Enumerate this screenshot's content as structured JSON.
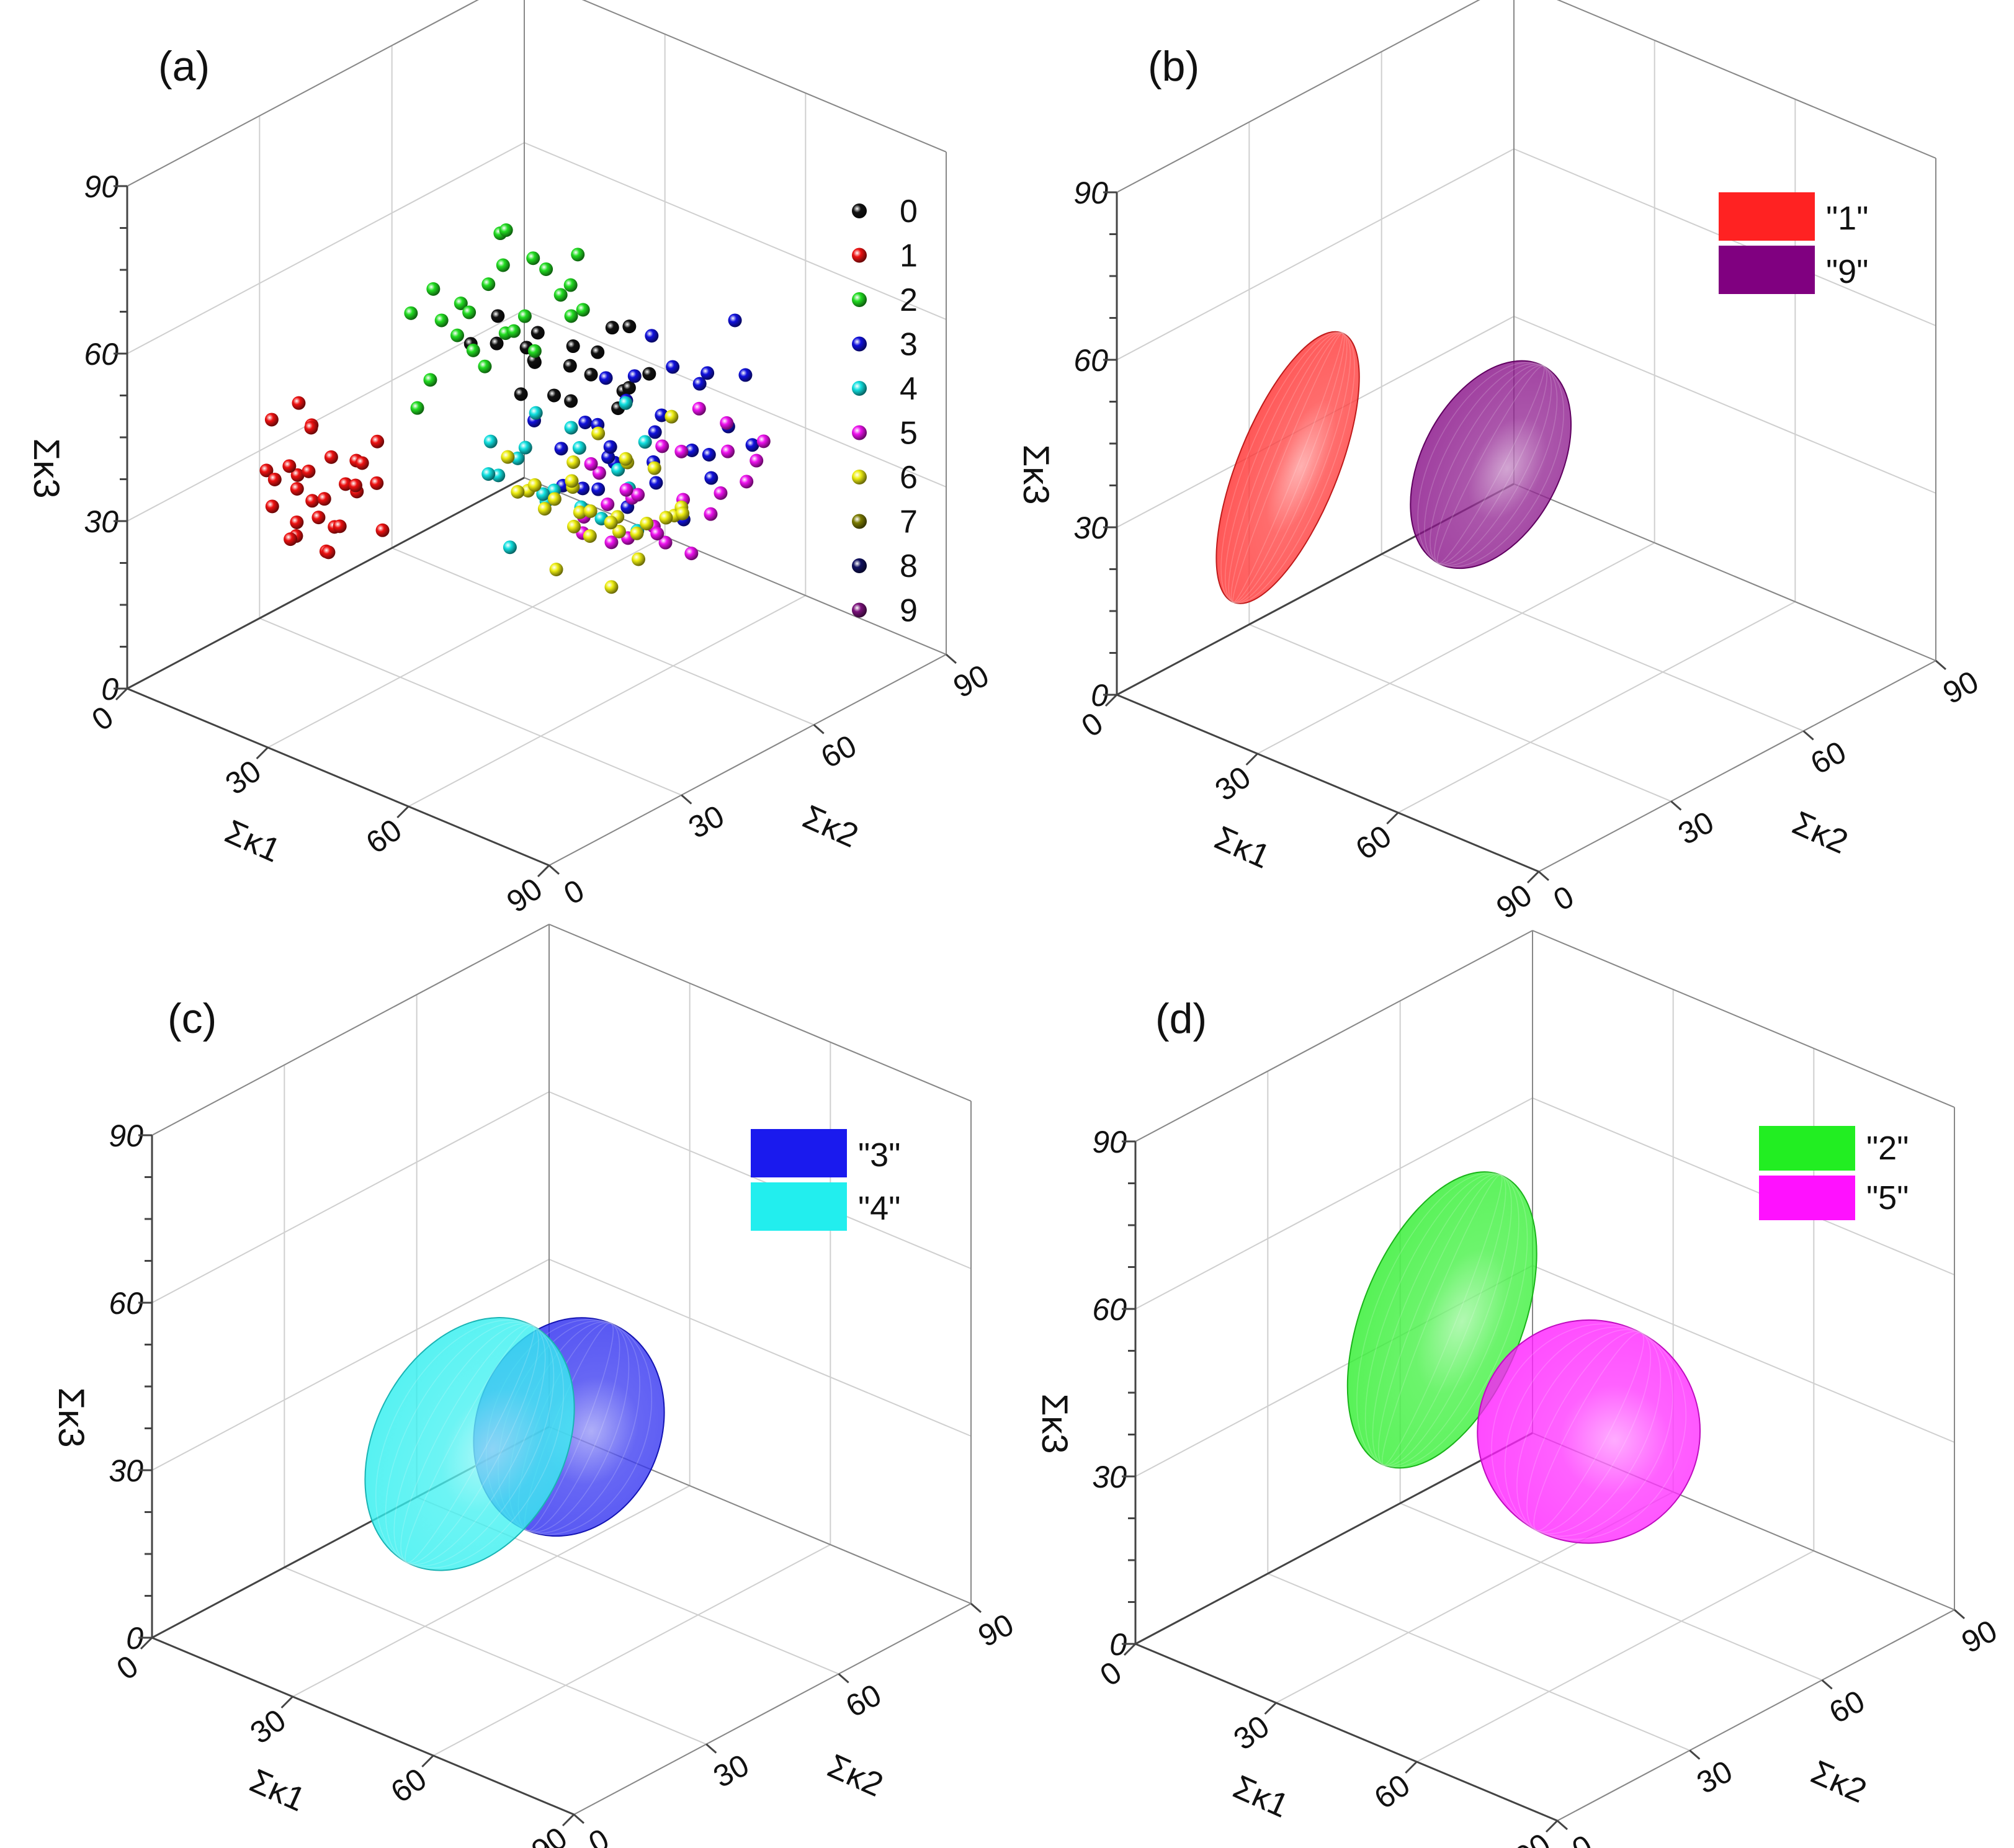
{
  "chart_data": [
    {
      "panel_label": "(a)",
      "type": "scatter",
      "xlabel": "Σκ1",
      "ylabel": "Σκ2",
      "zlabel": "Σκ3",
      "xlim": [
        0,
        90
      ],
      "ylim": [
        0,
        90
      ],
      "zlim": [
        0,
        90
      ],
      "ticks": [
        "0",
        "30",
        "60",
        "90"
      ],
      "grid": true,
      "legend_position": "top-right",
      "series": [
        {
          "name": "0",
          "color": "#111111",
          "points": [
            [
              38,
              52,
              50
            ],
            [
              35,
              55,
              48
            ],
            [
              44,
              50,
              47
            ],
            [
              50,
              52,
              52
            ],
            [
              40,
              48,
              55
            ],
            [
              33,
              58,
              51
            ],
            [
              42,
              62,
              49
            ],
            [
              52,
              56,
              45
            ],
            [
              30,
              46,
              53
            ],
            [
              47,
              60,
              56
            ],
            [
              55,
              54,
              50
            ],
            [
              36,
              51,
              44
            ],
            [
              41,
              57,
              42
            ],
            [
              49,
              49,
              58
            ],
            [
              60,
              50,
              54
            ],
            [
              28,
              54,
              49
            ],
            [
              45,
              66,
              53
            ],
            [
              38,
              60,
              46
            ],
            [
              53,
              62,
              49
            ],
            [
              32,
              50,
              57
            ]
          ]
        },
        {
          "name": "1",
          "color": "#ee1111",
          "points": [
            [
              10,
              28,
              30
            ],
            [
              12,
              24,
              34
            ],
            [
              8,
              30,
              26
            ],
            [
              15,
              26,
              28
            ],
            [
              18,
              22,
              36
            ],
            [
              11,
              33,
              24
            ],
            [
              14,
              18,
              30
            ],
            [
              20,
              25,
              38
            ],
            [
              9,
              22,
              33
            ],
            [
              16,
              30,
              22
            ],
            [
              13,
              28,
              40
            ],
            [
              22,
              20,
              30
            ],
            [
              17,
              34,
              27
            ],
            [
              24,
              24,
              35
            ],
            [
              12,
              20,
              44
            ],
            [
              19,
              28,
              24
            ],
            [
              7,
              26,
              29
            ],
            [
              25,
              30,
              33
            ],
            [
              21,
              16,
              28
            ],
            [
              15,
              36,
              31
            ],
            [
              28,
              22,
              37
            ],
            [
              18,
              26,
              20
            ],
            [
              11,
              30,
              38
            ],
            [
              26,
              18,
              26
            ],
            [
              14,
              24,
              46
            ],
            [
              30,
              26,
              28
            ],
            [
              20,
              32,
              34
            ],
            [
              23,
              14,
              32
            ],
            [
              16,
              20,
              24
            ],
            [
              27,
              28,
              42
            ]
          ]
        },
        {
          "name": "2",
          "color": "#22dd22",
          "points": [
            [
              26,
              48,
              58
            ],
            [
              24,
              52,
              54
            ],
            [
              30,
              50,
              62
            ],
            [
              28,
              56,
              50
            ],
            [
              22,
              46,
              60
            ],
            [
              34,
              54,
              56
            ],
            [
              32,
              58,
              64
            ],
            [
              20,
              50,
              52
            ],
            [
              36,
              60,
              58
            ],
            [
              29,
              44,
              55
            ],
            [
              25,
              58,
              66
            ],
            [
              38,
              52,
              52
            ],
            [
              31,
              62,
              60
            ],
            [
              27,
              40,
              48
            ],
            [
              35,
              48,
              68
            ],
            [
              23,
              54,
              46
            ],
            [
              40,
              58,
              62
            ],
            [
              33,
              46,
              50
            ],
            [
              21,
              42,
              57
            ],
            [
              37,
              64,
              54
            ],
            [
              30,
              54,
              70
            ],
            [
              26,
              60,
              48
            ],
            [
              42,
              56,
              58
            ],
            [
              28,
              36,
              45
            ],
            [
              34,
              66,
              62
            ]
          ]
        },
        {
          "name": "3",
          "color": "#1111dd",
          "points": [
            [
              45,
              56,
              40
            ],
            [
              50,
              60,
              44
            ],
            [
              55,
              52,
              38
            ],
            [
              48,
              64,
              46
            ],
            [
              58,
              58,
              42
            ],
            [
              42,
              62,
              36
            ],
            [
              60,
              66,
              48
            ],
            [
              52,
              48,
              34
            ],
            [
              46,
              70,
              50
            ],
            [
              64,
              60,
              40
            ],
            [
              38,
              58,
              32
            ],
            [
              56,
              72,
              46
            ],
            [
              62,
              54,
              36
            ],
            [
              44,
              52,
              30
            ],
            [
              68,
              64,
              44
            ],
            [
              50,
              68,
              38
            ],
            [
              40,
              66,
              42
            ],
            [
              58,
              62,
              52
            ],
            [
              54,
              56,
              28
            ],
            [
              66,
              70,
              50
            ],
            [
              48,
              58,
              34
            ],
            [
              70,
              58,
              38
            ],
            [
              36,
              54,
              38
            ],
            [
              60,
              74,
              56
            ],
            [
              52,
              64,
              32
            ],
            [
              62,
              66,
              36
            ],
            [
              75,
              62,
              44
            ],
            [
              56,
              50,
              42
            ],
            [
              44,
              60,
              26
            ],
            [
              66,
              56,
              30
            ]
          ]
        },
        {
          "name": "4",
          "color": "#11e0e0",
          "points": [
            [
              40,
              46,
              36
            ],
            [
              44,
              50,
              30
            ],
            [
              36,
              52,
              34
            ],
            [
              48,
              44,
              32
            ],
            [
              42,
              56,
              38
            ],
            [
              50,
              50,
              28
            ],
            [
              34,
              48,
              30
            ],
            [
              46,
              54,
              26
            ],
            [
              38,
              42,
              40
            ],
            [
              52,
              56,
              34
            ],
            [
              56,
              48,
              30
            ],
            [
              40,
              60,
              32
            ],
            [
              30,
              50,
              28
            ],
            [
              54,
              60,
              38
            ],
            [
              44,
              40,
              24
            ],
            [
              48,
              62,
              42
            ],
            [
              58,
              54,
              26
            ],
            [
              36,
              56,
              24
            ],
            [
              60,
              50,
              36
            ],
            [
              42,
              48,
              44
            ]
          ]
        },
        {
          "name": "5",
          "color": "#ee11ee",
          "points": [
            [
              55,
              56,
              30
            ],
            [
              60,
              52,
              34
            ],
            [
              50,
              60,
              28
            ],
            [
              58,
              64,
              36
            ],
            [
              64,
              58,
              32
            ],
            [
              52,
              48,
              26
            ],
            [
              66,
              66,
              38
            ],
            [
              56,
              54,
              24
            ],
            [
              62,
              70,
              40
            ],
            [
              48,
              56,
              32
            ],
            [
              68,
              60,
              30
            ],
            [
              54,
              62,
              22
            ],
            [
              60,
              46,
              28
            ],
            [
              70,
              66,
              34
            ],
            [
              50,
              52,
              36
            ],
            [
              64,
              54,
              26
            ],
            [
              58,
              68,
              42
            ],
            [
              72,
              58,
              36
            ],
            [
              46,
              60,
              24
            ],
            [
              66,
              50,
              30
            ],
            [
              62,
              62,
              20
            ],
            [
              56,
              44,
              32
            ],
            [
              74,
              64,
              40
            ],
            [
              52,
              66,
              34
            ],
            [
              68,
              72,
              38
            ]
          ]
        },
        {
          "name": "6",
          "color": "#eeee11",
          "points": [
            [
              48,
              50,
              32
            ],
            [
              52,
              46,
              28
            ],
            [
              44,
              54,
              30
            ],
            [
              56,
              52,
              26
            ],
            [
              46,
              42,
              34
            ],
            [
              50,
              58,
              24
            ],
            [
              58,
              48,
              30
            ],
            [
              42,
              50,
              26
            ],
            [
              54,
              56,
              36
            ],
            [
              60,
              54,
              28
            ],
            [
              40,
              46,
              30
            ],
            [
              48,
              62,
              32
            ],
            [
              62,
              50,
              24
            ],
            [
              46,
              56,
              20
            ],
            [
              56,
              60,
              34
            ],
            [
              38,
              52,
              28
            ],
            [
              52,
              42,
              22
            ],
            [
              64,
              56,
              30
            ],
            [
              44,
              60,
              36
            ],
            [
              58,
              64,
              26
            ],
            [
              50,
              48,
              38
            ],
            [
              66,
              52,
              32
            ],
            [
              42,
              58,
              22
            ],
            [
              54,
              66,
              40
            ],
            [
              60,
              46,
              20
            ],
            [
              36,
              48,
              34
            ],
            [
              48,
              54,
              26
            ],
            [
              62,
              60,
              28
            ],
            [
              46,
              48,
              30
            ],
            [
              56,
              56,
              24
            ]
          ]
        },
        {
          "name": "7",
          "color": "#7a7a00",
          "points": []
        },
        {
          "name": "8",
          "color": "#101060",
          "points": []
        },
        {
          "name": "9",
          "color": "#7a127a",
          "points": []
        }
      ]
    },
    {
      "panel_label": "(b)",
      "type": "scatter",
      "xlabel": "Σκ1",
      "ylabel": "Σκ2",
      "zlabel": "Σκ3",
      "xlim": [
        0,
        90
      ],
      "ylim": [
        0,
        90
      ],
      "zlim": [
        0,
        90
      ],
      "ticks": [
        "0",
        "30",
        "60",
        "90"
      ],
      "grid": true,
      "legend_position": "top-right",
      "series": [
        {
          "name": "\"1\"",
          "color": "#ff2222",
          "center": [
            12,
            26,
            34
          ],
          "radius": [
            6,
            10,
            26
          ]
        },
        {
          "name": "\"9\"",
          "color": "#800080",
          "center": [
            28,
            55,
            28
          ],
          "radius": [
            8,
            14,
            20
          ]
        }
      ]
    },
    {
      "panel_label": "(c)",
      "type": "scatter",
      "xlabel": "Σκ1",
      "ylabel": "Σκ2",
      "zlabel": "Σκ3",
      "xlim": [
        0,
        90
      ],
      "ylim": [
        0,
        90
      ],
      "zlim": [
        0,
        90
      ],
      "ticks": [
        "0",
        "30",
        "60",
        "90"
      ],
      "grid": true,
      "legend_position": "top-right",
      "series": [
        {
          "name": "\"3\"",
          "color": "#1a1aee",
          "center": [
            40,
            52,
            30
          ],
          "radius": [
            14,
            16,
            20
          ]
        },
        {
          "name": "\"4\"",
          "color": "#22eeee",
          "center": [
            32,
            38,
            30
          ],
          "radius": [
            16,
            15,
            24
          ]
        }
      ]
    },
    {
      "panel_label": "(d)",
      "type": "scatter",
      "xlabel": "Σκ1",
      "ylabel": "Σκ2",
      "zlabel": "Σκ3",
      "xlim": [
        0,
        90
      ],
      "ylim": [
        0,
        90
      ],
      "zlim": [
        0,
        90
      ],
      "ticks": [
        "0",
        "30",
        "60",
        "90"
      ],
      "grid": true,
      "legend_position": "top-right",
      "series": [
        {
          "name": "\"2\"",
          "color": "#22ee22",
          "center": [
            24,
            44,
            48
          ],
          "radius": [
            12,
            14,
            28
          ]
        },
        {
          "name": "\"5\"",
          "color": "#ff11ff",
          "center": [
            44,
            56,
            30
          ],
          "radius": [
            16,
            20,
            20
          ]
        }
      ]
    }
  ]
}
